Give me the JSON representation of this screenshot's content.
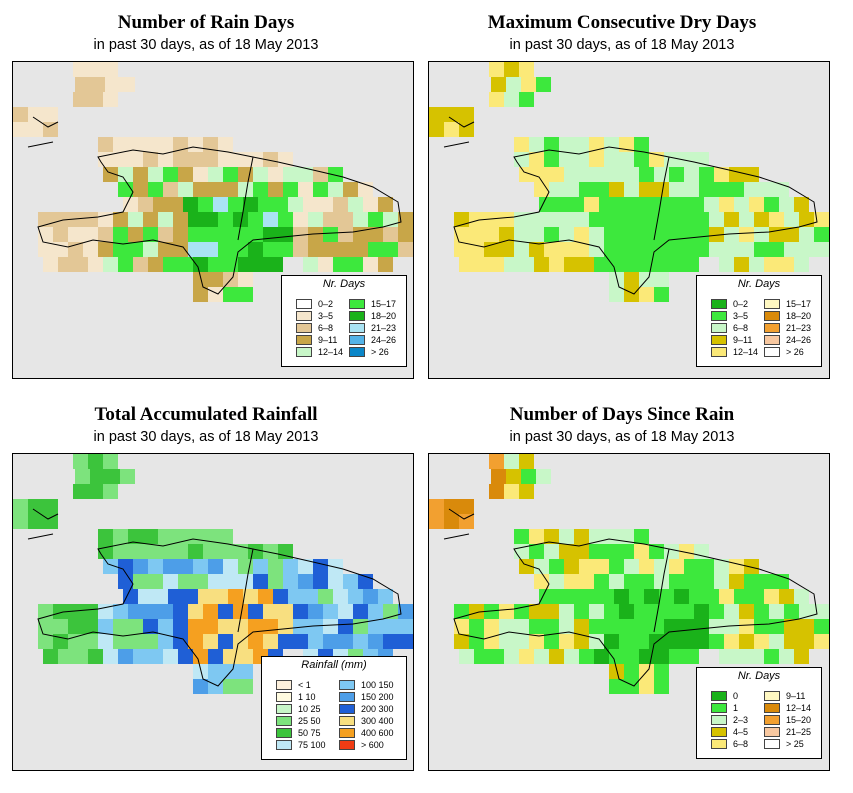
{
  "panels": [
    {
      "id": "rain-days",
      "title": "Number of Rain Days",
      "subtitle": "in past 30 days, as of  18 May 2013",
      "legend": {
        "title": "Nr. Days",
        "items": [
          {
            "label": "0–2",
            "color": "#ffffff"
          },
          {
            "label": "3–5",
            "color": "#f5e6cc"
          },
          {
            "label": "6–8",
            "color": "#e3c796"
          },
          {
            "label": "9–11",
            "color": "#c8a648"
          },
          {
            "label": "12–14",
            "color": "#c8f7c8"
          },
          {
            "label": "15–17",
            "color": "#3de83d"
          },
          {
            "label": "18–20",
            "color": "#1ab21a"
          },
          {
            "label": "21–23",
            "color": "#a9e3f3"
          },
          {
            "label": "24–26",
            "color": "#53b3e8"
          },
          {
            "label": "> 26",
            "color": "#0a86c8"
          }
        ]
      }
    },
    {
      "id": "dry-days",
      "title": "Maximum Consecutive Dry Days",
      "subtitle": "in past 30 days, as of  18 May 2013",
      "legend": {
        "title": "Nr. Days",
        "items": [
          {
            "label": "0–2",
            "color": "#1ab21a"
          },
          {
            "label": "3–5",
            "color": "#3de83d"
          },
          {
            "label": "6–8",
            "color": "#c8f7c8"
          },
          {
            "label": "9–11",
            "color": "#d6c200"
          },
          {
            "label": "12–14",
            "color": "#fbe978"
          },
          {
            "label": "15–17",
            "color": "#fff8c2"
          },
          {
            "label": "18–20",
            "color": "#d98a0b"
          },
          {
            "label": "21–23",
            "color": "#f2a030"
          },
          {
            "label": "24–26",
            "color": "#f8c8a0"
          },
          {
            "label": "> 26",
            "color": "#ffffff"
          }
        ]
      }
    },
    {
      "id": "rainfall",
      "title": "Total Accumulated Rainfall",
      "subtitle": "in past 30 days, as of  18 May 2013",
      "legend": {
        "title": "Rainfall (mm)",
        "items": [
          {
            "label": "< 1",
            "color": "#fdf0dc"
          },
          {
            "label": "1    10",
            "color": "#fffbe0"
          },
          {
            "label": "10    25",
            "color": "#c8f7c8"
          },
          {
            "label": "25    50",
            "color": "#7de37d"
          },
          {
            "label": "50    75",
            "color": "#3cc43c"
          },
          {
            "label": "75   100",
            "color": "#bfe8f5"
          },
          {
            "label": "100   150",
            "color": "#7ec8f2"
          },
          {
            "label": "150   200",
            "color": "#4d9ee8"
          },
          {
            "label": "200   300",
            "color": "#1f5fd6"
          },
          {
            "label": "300   400",
            "color": "#f8df80"
          },
          {
            "label": "400   600",
            "color": "#f5a020"
          },
          {
            "label": "> 600",
            "color": "#f03c14"
          }
        ]
      }
    },
    {
      "id": "since-rain",
      "title": "Number of Days Since Rain",
      "subtitle": "in past 30 days, as of  18 May 2013",
      "legend": {
        "title": "Nr. Days",
        "items": [
          {
            "label": "0",
            "color": "#1ab21a"
          },
          {
            "label": "1",
            "color": "#3de83d"
          },
          {
            "label": "2–3",
            "color": "#c8f7c8"
          },
          {
            "label": "4–5",
            "color": "#d6c200"
          },
          {
            "label": "6–8",
            "color": "#fbe978"
          },
          {
            "label": "9–11",
            "color": "#fff8c2"
          },
          {
            "label": "12–14",
            "color": "#d98a0b"
          },
          {
            "label": "15–20",
            "color": "#f2a030"
          },
          {
            "label": "21–25",
            "color": "#f8c8a0"
          },
          {
            "label": "> 25",
            "color": "#ffffff"
          }
        ]
      }
    }
  ]
}
